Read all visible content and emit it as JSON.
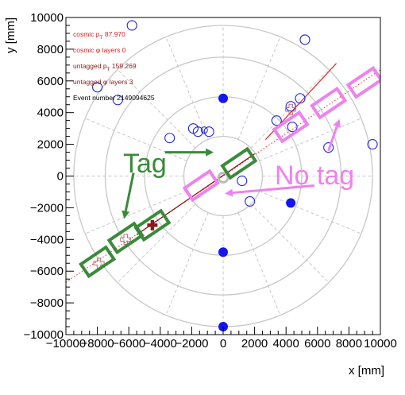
{
  "chart_data": {
    "type": "scatter",
    "xlabel": "x [mm]",
    "ylabel": "y [mm]",
    "xlim": [
      -10000,
      10000
    ],
    "ylim": [
      -10000,
      10000
    ],
    "x_ticks": [
      -10000,
      -8000,
      -6000,
      -4000,
      -2000,
      0,
      2000,
      4000,
      6000,
      8000,
      10000
    ],
    "y_ticks": [
      -10000,
      -8000,
      -6000,
      -4000,
      -2000,
      0,
      2000,
      4000,
      6000,
      8000,
      10000
    ],
    "x_tick_labels": [
      "−10000",
      "−8000",
      "−6000",
      "−4000",
      "−2000",
      "0",
      "2000",
      "4000",
      "6000",
      "8000",
      "10000"
    ],
    "y_tick_labels": [
      "−10000",
      "−8000",
      "−6000",
      "−4000",
      "−2000",
      "0",
      "2000",
      "4000",
      "6000",
      "8000",
      "10000"
    ],
    "grid_circles_radius": [
      2500,
      5000,
      7500,
      9500
    ],
    "info_lines": [
      {
        "prefix": "cosmic p",
        "sub": "T",
        "suffix": " 87.970",
        "color": "#dd2222"
      },
      {
        "prefix": "cosmic φ layers 0",
        "sub": "",
        "suffix": "",
        "color": "#dd2222"
      },
      {
        "prefix": "untagged p",
        "sub": "T",
        "suffix": " 159.269",
        "color": "#8b1a1a"
      },
      {
        "prefix": "untagged φ layers 3",
        "sub": "",
        "suffix": "",
        "color": "#8b1a1a"
      },
      {
        "prefix": "Event number 2149094625",
        "sub": "",
        "suffix": "",
        "color": "#000000"
      }
    ],
    "callouts": {
      "tag": {
        "text": "Tag",
        "color": "#3a8a3a"
      },
      "no_tag": {
        "text": "No tag",
        "color": "#ee82ee"
      }
    },
    "filled_points": [
      [
        0,
        4900
      ],
      [
        0,
        -4800
      ],
      [
        0,
        -9500
      ],
      [
        4300,
        -1700
      ]
    ],
    "open_points": [
      [
        -5800,
        9500
      ],
      [
        -8000,
        5600
      ],
      [
        -6700,
        4800
      ],
      [
        -3400,
        2400
      ],
      [
        -1900,
        3000
      ],
      [
        -1600,
        2800
      ],
      [
        -900,
        2800
      ],
      [
        1200,
        -300
      ],
      [
        1700,
        -1600
      ],
      [
        3400,
        3500
      ],
      [
        4300,
        4400
      ],
      [
        4400,
        3100
      ],
      [
        4900,
        4900
      ],
      [
        5200,
        8600
      ],
      [
        6700,
        1800
      ],
      [
        9500,
        2000
      ]
    ],
    "small_open_points": [
      [
        -1200,
        2900
      ]
    ],
    "gray_points": [
      [
        0,
        -100
      ]
    ],
    "cross_markers": [
      {
        "x": -4500,
        "y": -3100,
        "fill": "#8b1a1a"
      }
    ],
    "hollow_cross_markers": [
      {
        "x": -6200,
        "y": -4000
      },
      {
        "x": -7900,
        "y": -5500
      },
      {
        "x": 4300,
        "y": 4200
      }
    ],
    "cosmic_track": {
      "x1": -10000,
      "y1": -6700,
      "x2": 10000,
      "y2": 6700
    },
    "red_segment": {
      "x1": 2700,
      "y1": 2300,
      "x2": 7200,
      "y2": 7100
    },
    "darkred_segment": {
      "x1": -5500,
      "y1": -3700,
      "x2": 2000,
      "y2": 1400
    },
    "tag_boxes": [
      [
        1000,
        800
      ],
      [
        -4500,
        -3100
      ],
      [
        -6200,
        -3900
      ],
      [
        -8000,
        -5400
      ]
    ],
    "notag_boxes": [
      [
        -1400,
        -600
      ],
      [
        4300,
        3100
      ],
      [
        6700,
        4600
      ],
      [
        9000,
        5900
      ]
    ],
    "tag_arrows": [
      [
        -3700,
        1500,
        -600,
        1500
      ],
      [
        -5700,
        200,
        -6300,
        -2700
      ]
    ],
    "notag_arrows": [
      [
        5800,
        -600,
        100,
        -1100
      ],
      [
        6700,
        1600,
        7400,
        3600
      ]
    ]
  }
}
